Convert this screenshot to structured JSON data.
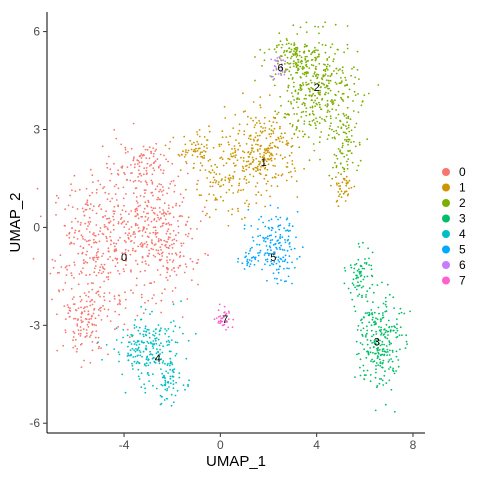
{
  "chart_data": {
    "type": "scatter",
    "xlabel": "UMAP_1",
    "ylabel": "UMAP_2",
    "xlim": [
      -7.2,
      8.5
    ],
    "ylim": [
      -6.3,
      6.6
    ],
    "xticks": [
      -4,
      0,
      4,
      8
    ],
    "yticks": [
      -6,
      -3,
      0,
      3,
      6
    ],
    "xtick_labels": [
      "-4",
      "0",
      "4",
      "8"
    ],
    "ytick_labels": [
      "-6",
      "-3",
      "0",
      "3",
      "6"
    ],
    "grid": false,
    "legend_placement": "right",
    "series": [
      {
        "name": "0",
        "color": "#F8766D",
        "label_position": [
          -4.0,
          -0.9
        ],
        "regions": [
          {
            "cx": -5.2,
            "cy": -0.8,
            "rx": 1.6,
            "ry": 2.2,
            "n": 320
          },
          {
            "cx": -3.2,
            "cy": 0.3,
            "rx": 1.8,
            "ry": 1.8,
            "n": 300
          },
          {
            "cx": -2.2,
            "cy": -0.9,
            "rx": 1.1,
            "ry": 1.3,
            "n": 120
          },
          {
            "cx": -5.6,
            "cy": -3.0,
            "rx": 0.9,
            "ry": 0.8,
            "n": 90
          },
          {
            "cx": -3.0,
            "cy": 2.0,
            "rx": 0.9,
            "ry": 0.6,
            "n": 60
          }
        ]
      },
      {
        "name": "1",
        "color": "#CD9600",
        "label_position": [
          1.8,
          2.0
        ],
        "regions": [
          {
            "cx": 1.8,
            "cy": 2.4,
            "rx": 1.4,
            "ry": 1.1,
            "n": 260
          },
          {
            "cx": 0.3,
            "cy": 1.4,
            "rx": 1.4,
            "ry": 1.0,
            "n": 120
          },
          {
            "cx": -1.0,
            "cy": 2.3,
            "rx": 0.8,
            "ry": 0.5,
            "n": 60
          },
          {
            "cx": 5.1,
            "cy": 1.2,
            "rx": 0.4,
            "ry": 0.5,
            "n": 40
          }
        ]
      },
      {
        "name": "2",
        "color": "#7CAE00",
        "label_position": [
          4.0,
          4.3
        ],
        "regions": [
          {
            "cx": 4.0,
            "cy": 4.3,
            "rx": 1.6,
            "ry": 1.4,
            "n": 400
          },
          {
            "cx": 5.1,
            "cy": 2.6,
            "rx": 0.6,
            "ry": 1.0,
            "n": 90
          },
          {
            "cx": 3.0,
            "cy": 5.3,
            "rx": 0.9,
            "ry": 0.5,
            "n": 80
          }
        ]
      },
      {
        "name": "3",
        "color": "#00BE67",
        "label_position": [
          6.5,
          -3.5
        ],
        "regions": [
          {
            "cx": 6.6,
            "cy": -3.5,
            "rx": 0.8,
            "ry": 1.4,
            "n": 260
          },
          {
            "cx": 5.8,
            "cy": -1.5,
            "rx": 0.5,
            "ry": 0.8,
            "n": 70
          }
        ]
      },
      {
        "name": "4",
        "color": "#00BFC4",
        "label_position": [
          -2.6,
          -4.0
        ],
        "regions": [
          {
            "cx": -3.0,
            "cy": -3.7,
            "rx": 1.3,
            "ry": 0.9,
            "n": 220
          },
          {
            "cx": -2.2,
            "cy": -4.8,
            "rx": 0.6,
            "ry": 0.6,
            "n": 60
          }
        ]
      },
      {
        "name": "5",
        "color": "#00A9FF",
        "label_position": [
          2.2,
          -0.9
        ],
        "regions": [
          {
            "cx": 2.2,
            "cy": -0.6,
            "rx": 0.9,
            "ry": 0.9,
            "n": 160
          },
          {
            "cx": 1.1,
            "cy": -1.0,
            "rx": 0.3,
            "ry": 0.3,
            "n": 20
          }
        ]
      },
      {
        "name": "6",
        "color": "#C77CFF",
        "label_position": [
          2.5,
          4.9
        ],
        "regions": [
          {
            "cx": 2.4,
            "cy": 4.9,
            "rx": 0.3,
            "ry": 0.4,
            "n": 25
          }
        ]
      },
      {
        "name": "7",
        "color": "#FF61CC",
        "label_position": [
          0.2,
          -2.8
        ],
        "regions": [
          {
            "cx": 0.2,
            "cy": -2.8,
            "rx": 0.35,
            "ry": 0.35,
            "n": 35
          }
        ]
      }
    ]
  }
}
